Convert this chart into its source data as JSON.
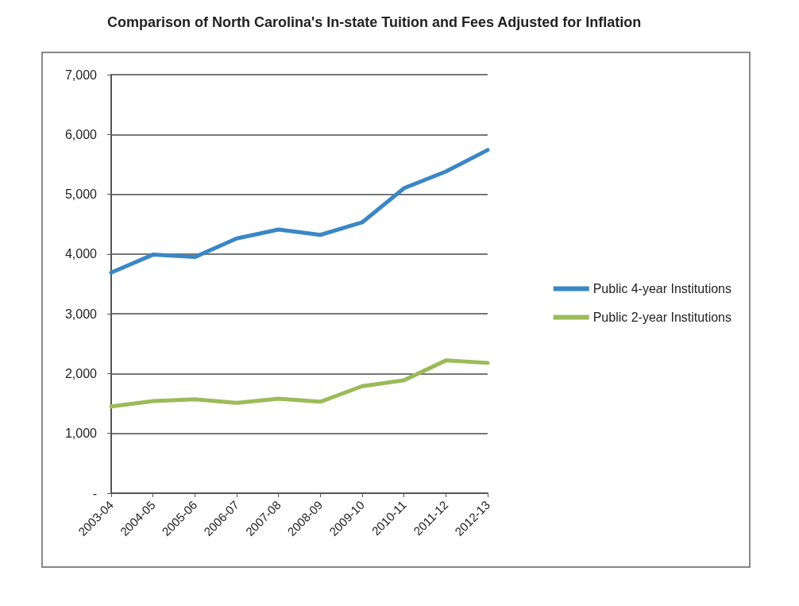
{
  "chart_data": {
    "type": "line",
    "title": "Comparison of North Carolina's In-state Tuition and Fees Adjusted for Inflation",
    "categories": [
      "2003-04",
      "2004-05",
      "2005-06",
      "2006-07",
      "2007-08",
      "2008-09",
      "2009-10",
      "2010-11",
      "2011-12",
      "2012-13"
    ],
    "series": [
      {
        "name": "Public 4-year Institutions",
        "color": "#3a87c6",
        "values": [
          3690,
          3990,
          3950,
          4260,
          4410,
          4320,
          4530,
          5100,
          5380,
          5740
        ]
      },
      {
        "name": "Public 2-year Institutions",
        "color": "#9bbb59",
        "values": [
          1450,
          1540,
          1570,
          1510,
          1580,
          1530,
          1790,
          1890,
          2220,
          2180
        ]
      }
    ],
    "ylim": [
      0,
      7000
    ],
    "yticks": [
      {
        "value": 0,
        "label": "-"
      },
      {
        "value": 1000,
        "label": "1,000"
      },
      {
        "value": 2000,
        "label": "2,000"
      },
      {
        "value": 3000,
        "label": "3,000"
      },
      {
        "value": 4000,
        "label": "4,000"
      },
      {
        "value": 5000,
        "label": "5,000"
      },
      {
        "value": 6000,
        "label": "6,000"
      },
      {
        "value": 7000,
        "label": "7,000"
      }
    ],
    "grid": "y",
    "legend": "right",
    "marker": "none",
    "line_style": "solid"
  }
}
